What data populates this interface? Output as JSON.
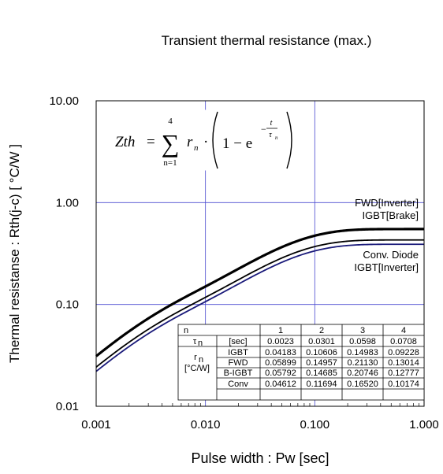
{
  "chart_data": {
    "type": "line",
    "title": "Transient thermal resistance (max.)",
    "xlabel": "Pulse width : Pw [sec]",
    "ylabel": "Thermal resistanse : Rth(j-c) [ °C/W ]",
    "x_scale": "log",
    "y_scale": "log",
    "xlim": [
      0.001,
      1.0
    ],
    "ylim": [
      0.01,
      10.0
    ],
    "grid": true,
    "x_ticks": [
      0.001,
      0.01,
      0.1,
      1.0
    ],
    "x_tick_labels": [
      "0.001",
      "0.010",
      "0.100",
      "1.000"
    ],
    "y_ticks": [
      0.01,
      0.1,
      1.0,
      10.0
    ],
    "y_tick_labels": [
      "0.01",
      "0.10",
      "1.00",
      "10.00"
    ],
    "formula": {
      "lhs": "Zth",
      "equals": "=",
      "sum_upper": "4",
      "sum_lower": "n=1",
      "term": "r",
      "term_sub": "n",
      "one_minus": "1 − e",
      "exp_num": "t",
      "exp_den": "τ",
      "exp_den_sub": "n"
    },
    "table": {
      "header": [
        "n",
        "1",
        "2",
        "3",
        "4"
      ],
      "tau_row": {
        "label": "τ",
        "label_sub": "n",
        "unit": "[sec]",
        "values": [
          "0.0023",
          "0.0301",
          "0.0598",
          "0.0708"
        ]
      },
      "r_label": "r",
      "r_label_sub": "n",
      "r_unit": "[°C/W]",
      "rows": [
        {
          "name": "IGBT",
          "values": [
            "0.04183",
            "0.10606",
            "0.14983",
            "0.09228"
          ]
        },
        {
          "name": "FWD",
          "values": [
            "0.05899",
            "0.14957",
            "0.21130",
            "0.13014"
          ]
        },
        {
          "name": "B-IGBT",
          "values": [
            "0.05792",
            "0.14685",
            "0.20746",
            "0.12777"
          ]
        },
        {
          "name": "Conv",
          "values": [
            "0.04612",
            "0.11694",
            "0.16520",
            "0.10174"
          ]
        }
      ]
    },
    "series_labels": [
      {
        "text": "FWD[Inverter]"
      },
      {
        "text": "IGBT[Brake]"
      },
      {
        "text": "Conv. Diode"
      },
      {
        "text": "IGBT[Inverter]"
      }
    ],
    "series": [
      {
        "taus": [
          0.0023,
          0.0301,
          0.0598,
          0.0708
        ],
        "rs": [
          0.05899,
          0.14957,
          0.2113,
          0.13014
        ],
        "color": "#000000",
        "width": 3.2
      },
      {
        "taus": [
          0.0023,
          0.0301,
          0.0598,
          0.0708
        ],
        "rs": [
          0.04612,
          0.11694,
          0.1652,
          0.10174
        ],
        "color": "#000000",
        "width": 1.8
      },
      {
        "taus": [
          0.0023,
          0.0301,
          0.0598,
          0.0708
        ],
        "rs": [
          0.04183,
          0.10606,
          0.14983,
          0.09228
        ],
        "color": "#1a1a7a",
        "width": 1.8
      }
    ],
    "colors": {
      "grid": "#4a4ad0",
      "axis": "#000000"
    }
  }
}
